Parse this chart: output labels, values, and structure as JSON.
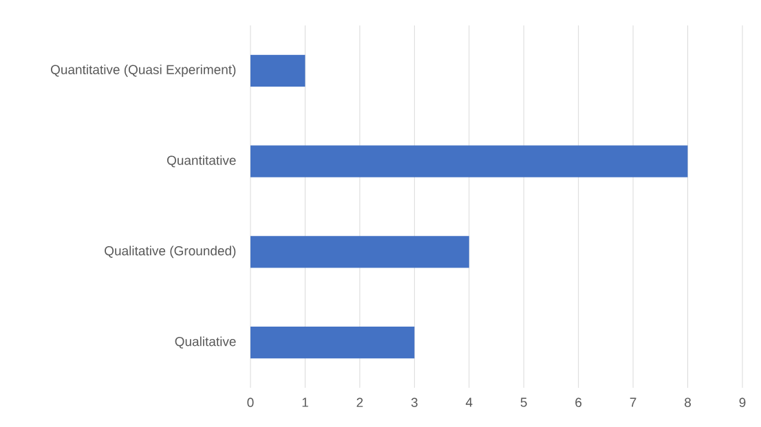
{
  "chart_data": {
    "type": "bar",
    "orientation": "horizontal",
    "categories": [
      "Quantitative (Quasi Experiment)",
      "Quantitative",
      "Qualitative (Grounded)",
      "Qualitative"
    ],
    "values": [
      1,
      8,
      4,
      3
    ],
    "color": "#4472c4",
    "xlim": [
      0,
      9
    ],
    "xticks": [
      0,
      1,
      2,
      3,
      4,
      5,
      6,
      7,
      8,
      9
    ],
    "grid": "x"
  }
}
